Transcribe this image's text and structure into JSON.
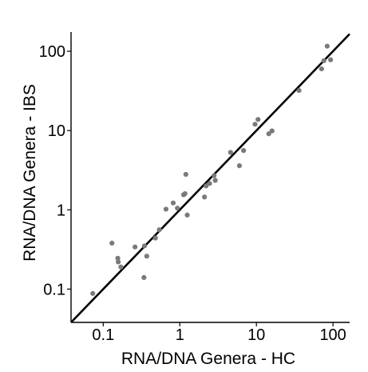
{
  "chart_data": {
    "type": "scatter",
    "title": "",
    "xlabel": "RNA/DNA Genera - HC",
    "ylabel": "RNA/DNA Genera - IBS",
    "x_scale": "log",
    "y_scale": "log",
    "xlim": [
      0.038,
      165
    ],
    "ylim": [
      0.038,
      175
    ],
    "x_ticks": [
      0.1,
      1,
      10,
      100
    ],
    "x_tick_labels": [
      "0.1",
      "1",
      "10",
      "100"
    ],
    "y_ticks": [
      0.1,
      1,
      10,
      100
    ],
    "y_tick_labels": [
      "0.1",
      "1",
      "10",
      "100"
    ],
    "grid": false,
    "point_color": "#7a7a7a",
    "line_color": "#000000",
    "reference_line": "y = x",
    "points": [
      {
        "x": 0.073,
        "y": 0.088
      },
      {
        "x": 0.13,
        "y": 0.38
      },
      {
        "x": 0.155,
        "y": 0.245
      },
      {
        "x": 0.157,
        "y": 0.22
      },
      {
        "x": 0.17,
        "y": 0.19
      },
      {
        "x": 0.26,
        "y": 0.34
      },
      {
        "x": 0.34,
        "y": 0.14
      },
      {
        "x": 0.345,
        "y": 0.35
      },
      {
        "x": 0.37,
        "y": 0.26
      },
      {
        "x": 0.48,
        "y": 0.44
      },
      {
        "x": 0.54,
        "y": 0.56
      },
      {
        "x": 0.66,
        "y": 1.02
      },
      {
        "x": 0.82,
        "y": 1.22
      },
      {
        "x": 0.93,
        "y": 1.05
      },
      {
        "x": 1.12,
        "y": 1.55
      },
      {
        "x": 1.17,
        "y": 1.6
      },
      {
        "x": 1.2,
        "y": 2.8
      },
      {
        "x": 1.25,
        "y": 0.86
      },
      {
        "x": 2.1,
        "y": 1.45
      },
      {
        "x": 2.2,
        "y": 2.0
      },
      {
        "x": 2.45,
        "y": 2.15
      },
      {
        "x": 2.8,
        "y": 2.7
      },
      {
        "x": 2.9,
        "y": 2.35
      },
      {
        "x": 4.6,
        "y": 5.3
      },
      {
        "x": 6.0,
        "y": 3.6
      },
      {
        "x": 6.8,
        "y": 5.6
      },
      {
        "x": 9.6,
        "y": 12.0
      },
      {
        "x": 10.5,
        "y": 13.8
      },
      {
        "x": 14.5,
        "y": 9.1
      },
      {
        "x": 16.0,
        "y": 9.9
      },
      {
        "x": 36.0,
        "y": 32.0
      },
      {
        "x": 71.0,
        "y": 60.0
      },
      {
        "x": 76.0,
        "y": 76.0
      },
      {
        "x": 84.0,
        "y": 116.0
      },
      {
        "x": 93.0,
        "y": 78.0
      }
    ]
  }
}
